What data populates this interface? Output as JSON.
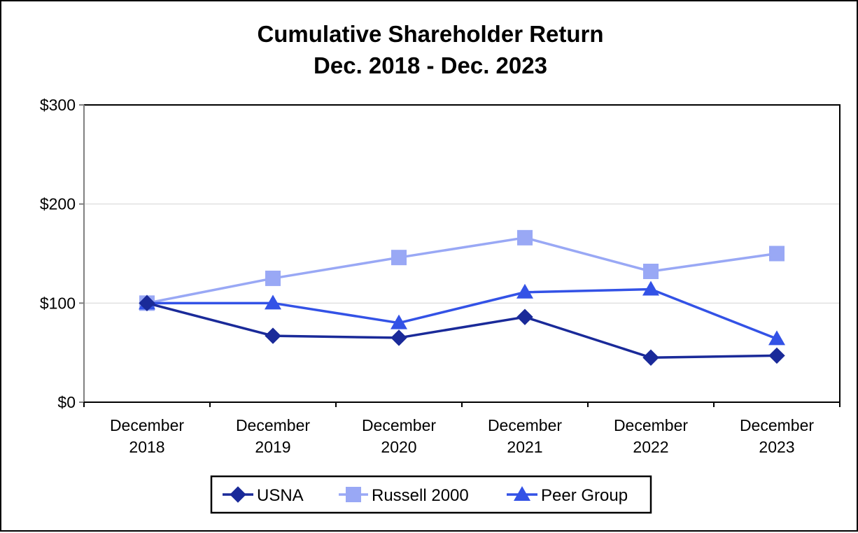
{
  "chart_data": {
    "type": "line",
    "title": [
      "Cumulative Shareholder Return",
      "Dec. 2018 - Dec. 2023"
    ],
    "xlabel": "",
    "ylabel": "",
    "categories": [
      [
        "December",
        "2018"
      ],
      [
        "December",
        "2019"
      ],
      [
        "December",
        "2020"
      ],
      [
        "December",
        "2021"
      ],
      [
        "December",
        "2022"
      ],
      [
        "December",
        "2023"
      ]
    ],
    "y_ticks": [
      {
        "value": 0,
        "label": "$0"
      },
      {
        "value": 100,
        "label": "$100"
      },
      {
        "value": 200,
        "label": "$200"
      },
      {
        "value": 300,
        "label": "$300"
      }
    ],
    "ylim": [
      0,
      300
    ],
    "grid": true,
    "legend_position": "bottom",
    "series": [
      {
        "name": "USNA",
        "marker": "diamond",
        "color": "#1a2a99",
        "values": [
          100,
          67,
          65,
          86,
          45,
          47
        ]
      },
      {
        "name": "Russell 2000",
        "marker": "square",
        "color": "#99a8f5",
        "values": [
          100,
          125,
          146,
          166,
          132,
          150
        ]
      },
      {
        "name": "Peer Group",
        "marker": "triangle",
        "color": "#3352e6",
        "values": [
          100,
          100,
          80,
          111,
          114,
          64
        ]
      }
    ]
  }
}
